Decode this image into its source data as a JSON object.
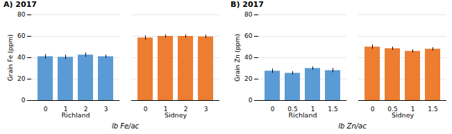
{
  "chart_data": [
    {
      "type": "bar",
      "title": "A) 2017",
      "ylabel": "Grain Fe (ppm)",
      "xlabel": "lb Fe/ac",
      "categories": [
        "0",
        "1",
        "2",
        "3"
      ],
      "series": [
        {
          "name": "Richland",
          "color": "#5B9BD5",
          "values": [
            41,
            40.5,
            42.5,
            41
          ],
          "errors": [
            2.0,
            2.0,
            2.0,
            1.5
          ]
        },
        {
          "name": "Sidney",
          "color": "#ED7D31",
          "values": [
            58.5,
            60,
            60,
            59.5
          ],
          "errors": [
            2.0,
            1.5,
            1.5,
            1.5
          ]
        }
      ],
      "ylim": [
        0,
        80
      ],
      "yticks": [
        0,
        20,
        40,
        60,
        80
      ],
      "grid": true
    },
    {
      "type": "bar",
      "title": "B) 2017",
      "ylabel": "Grain Zn (ppm)",
      "xlabel": "lb Zn/ac",
      "categories": [
        "0",
        "0.5",
        "1",
        "1.5"
      ],
      "series": [
        {
          "name": "Richland",
          "color": "#5B9BD5",
          "values": [
            27.5,
            25.5,
            30,
            28
          ],
          "errors": [
            2.0,
            1.5,
            1.5,
            2.0
          ]
        },
        {
          "name": "Sidney",
          "color": "#ED7D31",
          "values": [
            50,
            48.5,
            46,
            48
          ],
          "errors": [
            2.0,
            1.5,
            1.5,
            1.5
          ]
        }
      ],
      "ylim": [
        0,
        80
      ],
      "yticks": [
        0,
        20,
        40,
        60,
        80
      ],
      "grid": true
    }
  ]
}
